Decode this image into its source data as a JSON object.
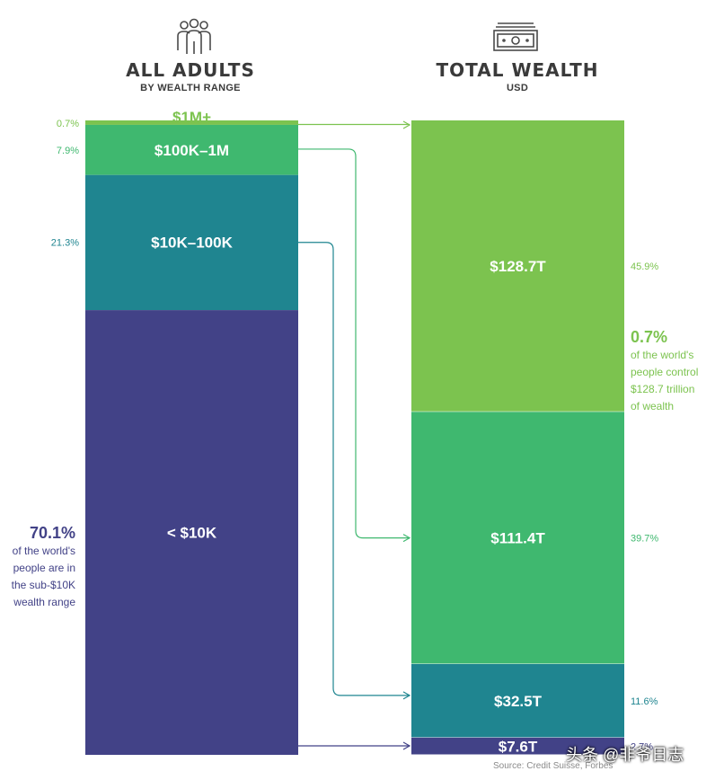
{
  "header_left": {
    "title": "ALL ADULTS",
    "subtitle": "BY WEALTH RANGE",
    "icon": "people-group-icon"
  },
  "header_right": {
    "title": "TOTAL WEALTH",
    "subtitle": "USD",
    "icon": "cash-bill-icon"
  },
  "chart_data": [
    {
      "type": "bar",
      "stacked": true,
      "title": "ALL ADULTS",
      "subtitle": "BY WEALTH RANGE",
      "unit": "%",
      "categories": [
        "$1M+",
        "$100K–1M",
        "$10K–100K",
        "< $10K"
      ],
      "values": [
        0.7,
        7.9,
        21.3,
        70.1
      ],
      "value_labels": [
        "0.7%",
        "7.9%",
        "21.3%",
        ""
      ],
      "colors": [
        "#7cc34f",
        "#3fb86f",
        "#1f8590",
        "#424287"
      ]
    },
    {
      "type": "bar",
      "stacked": true,
      "title": "TOTAL WEALTH",
      "subtitle": "USD",
      "unit": "trillion USD",
      "categories": [
        "$1M+",
        "$100K–1M",
        "$10K–100K",
        "< $10K"
      ],
      "values": [
        128.7,
        111.4,
        32.5,
        7.6
      ],
      "bar_labels": [
        "$128.7T",
        "$111.4T",
        "$32.5T",
        "$7.6T"
      ],
      "percent_values": [
        45.9,
        39.7,
        11.6,
        2.7
      ],
      "percent_labels": [
        "45.9%",
        "39.7%",
        "11.6%",
        "2.7%"
      ],
      "colors": [
        "#7cc34f",
        "#3fb86f",
        "#1f8590",
        "#424287"
      ]
    }
  ],
  "annotations": {
    "left": {
      "value": "70.1%",
      "lines": [
        "of the world's",
        "people are in",
        "the sub-$10K",
        "wealth range"
      ]
    },
    "right": {
      "value": "0.7%",
      "lines": [
        "of the world's",
        "people control",
        "$128.7 trillion",
        "of wealth"
      ]
    }
  },
  "source": "Source: Credit Suisse, Forbes",
  "watermark": "头条 @非爷日志"
}
